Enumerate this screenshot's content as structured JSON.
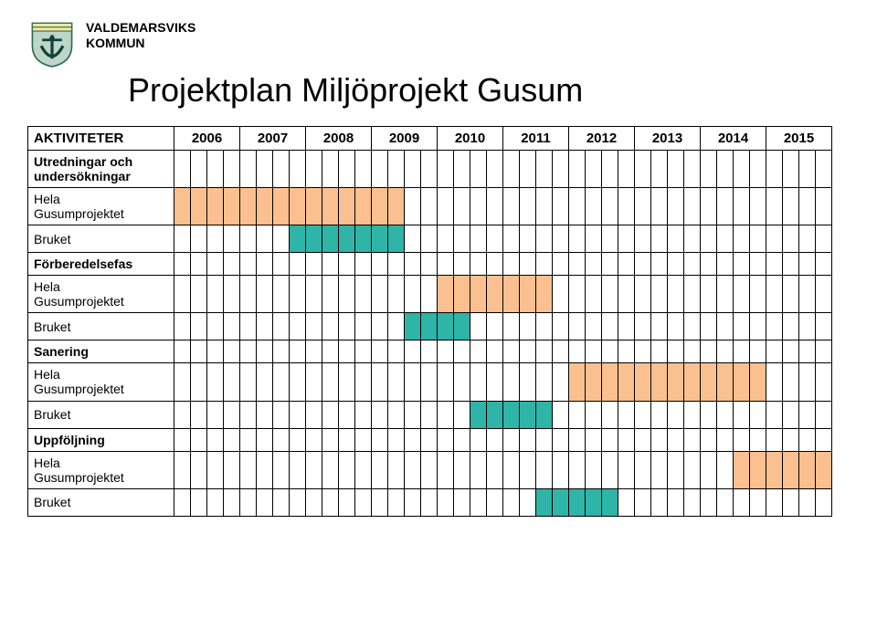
{
  "org": {
    "line1": "VALDEMARSVIKS",
    "line2": "KOMMUN"
  },
  "title": "Projektplan Miljöprojekt Gusum",
  "gantt": {
    "label_header": "AKTIVITETER",
    "years": [
      "2006",
      "2007",
      "2008",
      "2009",
      "2010",
      "2011",
      "2012",
      "2013",
      "2014",
      "2015"
    ],
    "quarters_per_year": 4,
    "colors": {
      "fill_a": "#fac08f",
      "fill_b": "#2fb4a8",
      "grid": "#000000",
      "bg": "#ffffff"
    },
    "rows": [
      {
        "type": "section",
        "label": "Utredningar och\nundersökningar"
      },
      {
        "type": "bar",
        "label": "Hela\nGusumprojektet",
        "fill": "a",
        "start": 0,
        "end": 13
      },
      {
        "type": "bar",
        "label": "Bruket",
        "fill": "b",
        "start": 7,
        "end": 13
      },
      {
        "type": "section",
        "label": "Förberedelsefas"
      },
      {
        "type": "bar",
        "label": "Hela\nGusumprojektet",
        "fill": "a",
        "start": 16,
        "end": 22
      },
      {
        "type": "bar",
        "label": "Bruket",
        "fill": "b",
        "start": 14,
        "end": 17
      },
      {
        "type": "section",
        "label": "Sanering"
      },
      {
        "type": "bar",
        "label": "Hela\nGusumprojektet",
        "fill": "a",
        "start": 24,
        "end": 35
      },
      {
        "type": "bar",
        "label": "Bruket",
        "fill": "b",
        "start": 18,
        "end": 22
      },
      {
        "type": "section",
        "label": "Uppföljning"
      },
      {
        "type": "bar",
        "label": "Hela\nGusumprojektet",
        "fill": "a",
        "start": 34,
        "end": 39
      },
      {
        "type": "bar",
        "label": "Bruket",
        "fill": "b",
        "start": 22,
        "end": 26
      }
    ]
  }
}
